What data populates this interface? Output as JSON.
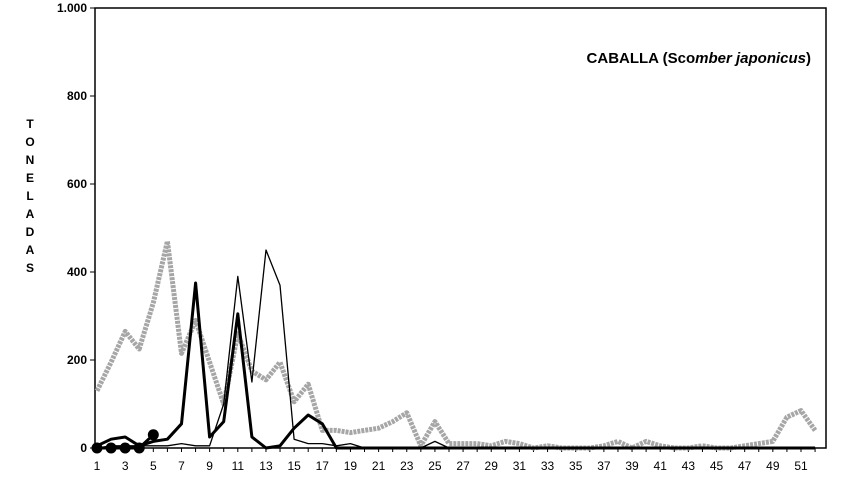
{
  "chart_data": {
    "type": "line",
    "title_parts": [
      "CABALLA (Sco",
      "mber japonicus",
      ")"
    ],
    "ylabel": "TONELADAS",
    "xlabel": "",
    "ylim": [
      0,
      1000
    ],
    "yticks": [
      0,
      200,
      400,
      600,
      800,
      1000
    ],
    "ytick_labels": [
      "0",
      "200",
      "400",
      "600",
      "800",
      "1.000"
    ],
    "x": [
      1,
      2,
      3,
      4,
      5,
      6,
      7,
      8,
      9,
      10,
      11,
      12,
      13,
      14,
      15,
      16,
      17,
      18,
      19,
      20,
      21,
      22,
      23,
      24,
      25,
      26,
      27,
      28,
      29,
      30,
      31,
      32,
      33,
      34,
      35,
      36,
      37,
      38,
      39,
      40,
      41,
      42,
      43,
      44,
      45,
      46,
      47,
      48,
      49,
      50,
      51,
      52
    ],
    "xtick_labels": [
      "1",
      "3",
      "5",
      "7",
      "9",
      "11",
      "13",
      "15",
      "17",
      "19",
      "21",
      "23",
      "25",
      "27",
      "29",
      "31",
      "33",
      "35",
      "37",
      "39",
      "41",
      "43",
      "45",
      "47",
      "49",
      "51"
    ],
    "series": [
      {
        "style": "gray-thick",
        "color": "#a6a6a6",
        "values": [
          130,
          195,
          265,
          225,
          330,
          470,
          215,
          290,
          195,
          100,
          260,
          175,
          155,
          195,
          105,
          145,
          40,
          40,
          35,
          40,
          45,
          60,
          80,
          5,
          60,
          10,
          10,
          10,
          5,
          15,
          10,
          0,
          5,
          0,
          0,
          0,
          5,
          15,
          0,
          15,
          5,
          0,
          0,
          5,
          0,
          0,
          5,
          10,
          15,
          70,
          85,
          40
        ]
      },
      {
        "style": "black-thin",
        "color": "#000000",
        "values": [
          0,
          5,
          5,
          5,
          5,
          5,
          10,
          5,
          5,
          100,
          390,
          150,
          450,
          370,
          20,
          10,
          10,
          5,
          10,
          0,
          0,
          0,
          0,
          0,
          15,
          0,
          0,
          0,
          0,
          0,
          0,
          0,
          0,
          0,
          0,
          0,
          0,
          0,
          0,
          0,
          0,
          0,
          0,
          0,
          0,
          0,
          0,
          0,
          0,
          0,
          0,
          0
        ]
      },
      {
        "style": "black-thick",
        "color": "#000000",
        "values": [
          5,
          20,
          25,
          5,
          15,
          20,
          55,
          375,
          25,
          60,
          305,
          25,
          0,
          5,
          45,
          75,
          55,
          0,
          0,
          0,
          0,
          0,
          0,
          0,
          0,
          0,
          0,
          0,
          0,
          0,
          0,
          0,
          0,
          0,
          0,
          0,
          0,
          0,
          0,
          0,
          0,
          0,
          0,
          0,
          0,
          0,
          0,
          0,
          0,
          0,
          0,
          0
        ]
      },
      {
        "style": "black-markers",
        "color": "#000000",
        "x": [
          1,
          2,
          3,
          4,
          5
        ],
        "values": [
          0,
          0,
          0,
          0,
          30
        ]
      }
    ],
    "grid": false,
    "legend": "none"
  }
}
